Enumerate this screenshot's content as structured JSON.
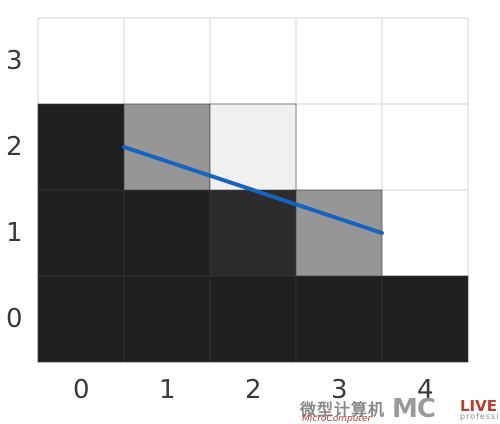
{
  "grid": {
    "columns": 5,
    "rows": 4,
    "x_tick_labels": [
      "0",
      "1",
      "2",
      "3",
      "4"
    ],
    "y_tick_labels": [
      "0",
      "1",
      "2",
      "3"
    ],
    "line_color": "#d6d6d6",
    "cells": [
      {
        "col": 0,
        "row": 0,
        "color": "#1f1f1f"
      },
      {
        "col": 1,
        "row": 0,
        "color": "#1f1f1f"
      },
      {
        "col": 2,
        "row": 0,
        "color": "#1f1f1f"
      },
      {
        "col": 3,
        "row": 0,
        "color": "#1f1f1f"
      },
      {
        "col": 4,
        "row": 0,
        "color": "#1f1f1f"
      },
      {
        "col": 0,
        "row": 1,
        "color": "#1f1f1f"
      },
      {
        "col": 1,
        "row": 1,
        "color": "#1f1f1f"
      },
      {
        "col": 2,
        "row": 1,
        "color": "#2c2c2c"
      },
      {
        "col": 3,
        "row": 1,
        "color": "#969696"
      },
      {
        "col": 0,
        "row": 2,
        "color": "#1f1f1f"
      },
      {
        "col": 1,
        "row": 2,
        "color": "#969696"
      },
      {
        "col": 2,
        "row": 2,
        "color": "#f0f0f0"
      }
    ],
    "segment": {
      "from": [
        1,
        2.5
      ],
      "to": [
        4,
        1.5
      ],
      "color": "#1565c0"
    }
  },
  "watermark": {
    "chinese": "微型计算机",
    "subtitle": "MicroComputer",
    "brand": "MC",
    "live": "LIVE",
    "professional": "professional"
  }
}
